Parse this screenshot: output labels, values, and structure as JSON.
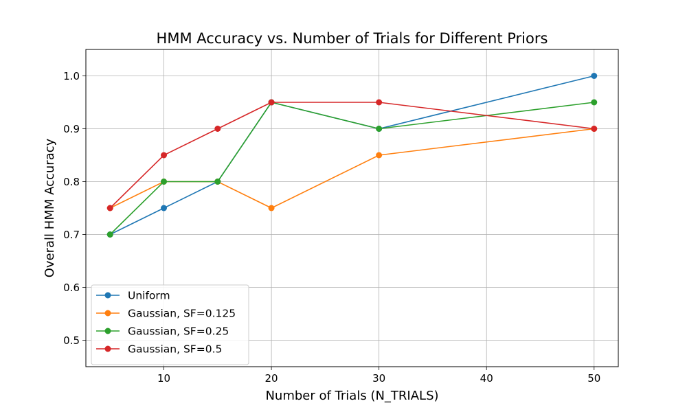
{
  "chart_data": {
    "type": "line",
    "title": "HMM Accuracy vs. Number of Trials for Different Priors",
    "xlabel": "Number of Trials (N_TRIALS)",
    "ylabel": "Overall HMM Accuracy",
    "xlim": [
      2.75,
      52.25
    ],
    "ylim": [
      0.45,
      1.05
    ],
    "xticks": [
      10,
      20,
      30,
      40,
      50
    ],
    "yticks": [
      0.5,
      0.6,
      0.7,
      0.8,
      0.9,
      1.0
    ],
    "grid": true,
    "legend_position": "lower-left",
    "x": [
      5,
      10,
      15,
      20,
      30,
      50
    ],
    "series": [
      {
        "name": "Uniform",
        "color": "#1f77b4",
        "values": [
          0.7,
          0.75,
          0.8,
          0.95,
          0.9,
          1.0
        ]
      },
      {
        "name": "Gaussian, SF=0.125",
        "color": "#ff7f0e",
        "values": [
          0.75,
          0.8,
          0.8,
          0.75,
          0.85,
          0.9
        ]
      },
      {
        "name": "Gaussian, SF=0.25",
        "color": "#2ca02c",
        "values": [
          0.7,
          0.8,
          0.8,
          0.95,
          0.9,
          0.95
        ]
      },
      {
        "name": "Gaussian, SF=0.5",
        "color": "#d62728",
        "values": [
          0.75,
          0.85,
          0.9,
          0.95,
          0.95,
          0.9
        ]
      }
    ]
  }
}
